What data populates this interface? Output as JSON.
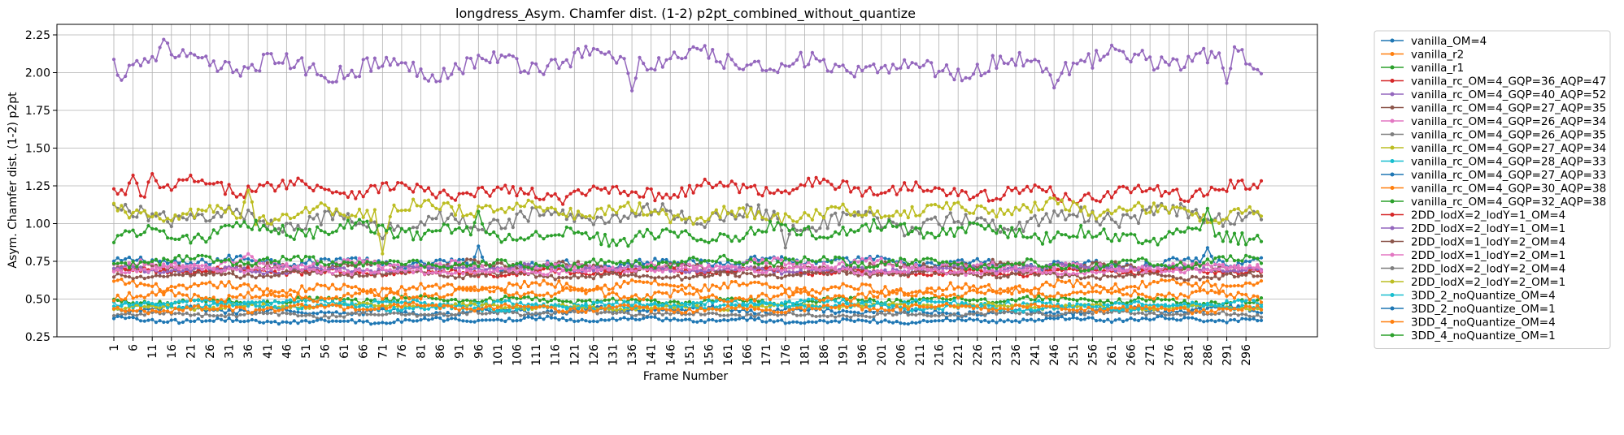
{
  "chart_data": {
    "type": "line",
    "title": "longdress_Asym. Chamfer dist. (1-2) p2pt_combined_without_quantize",
    "xlabel": "Frame Number",
    "ylabel": "Asym. Chamfer dist. (1-2) p2pt",
    "xlim": [
      1,
      300
    ],
    "ylim": [
      0.25,
      2.3
    ],
    "yticks": [
      "0.25",
      "0.50",
      "0.75",
      "1.00",
      "1.25",
      "1.50",
      "1.75",
      "2.00",
      "2.25"
    ],
    "xticks": [
      "1",
      "6",
      "11",
      "16",
      "21",
      "26",
      "31",
      "36",
      "41",
      "46",
      "51",
      "56",
      "61",
      "66",
      "71",
      "76",
      "81",
      "86",
      "91",
      "96",
      "101",
      "106",
      "111",
      "116",
      "121",
      "126",
      "131",
      "136",
      "141",
      "146",
      "151",
      "156",
      "161",
      "166",
      "171",
      "176",
      "181",
      "186",
      "191",
      "196",
      "201",
      "206",
      "211",
      "216",
      "221",
      "226",
      "231",
      "236",
      "241",
      "246",
      "251",
      "256",
      "261",
      "266",
      "271",
      "276",
      "281",
      "286",
      "291",
      "296"
    ],
    "grid": true,
    "legend_position": "outside-right",
    "series": [
      {
        "name": "vanilla_OM=4",
        "color": "#1f77b4",
        "base": 0.74,
        "amp": 0.03,
        "spikes": [
          [
            96,
            0.85
          ],
          [
            286,
            0.84
          ]
        ]
      },
      {
        "name": "vanilla_r2",
        "color": "#ff7f0e",
        "base": 0.58,
        "amp": 0.03,
        "spikes": [
          [
            286,
            0.62
          ]
        ]
      },
      {
        "name": "vanilla_r1",
        "color": "#2ca02c",
        "base": 0.49,
        "amp": 0.02,
        "spikes": []
      },
      {
        "name": "vanilla_rc_OM=4_GQP=36_AQP=47",
        "color": "#d62728",
        "base": 1.22,
        "amp": 0.05,
        "spikes": [
          [
            6,
            1.32
          ],
          [
            11,
            1.33
          ],
          [
            21,
            1.32
          ]
        ]
      },
      {
        "name": "vanilla_rc_OM=4_GQP=40_AQP=52",
        "color": "#9467bd",
        "base": 2.06,
        "amp": 0.07,
        "spikes": [
          [
            3,
            1.95
          ],
          [
            14,
            2.22
          ],
          [
            136,
            1.88
          ],
          [
            246,
            1.9
          ],
          [
            291,
            1.93
          ]
        ]
      },
      {
        "name": "vanilla_rc_OM=4_GQP=27_AQP=35",
        "color": "#8c564b",
        "base": 0.71,
        "amp": 0.03,
        "spikes": []
      },
      {
        "name": "vanilla_rc_OM=4_GQP=26_AQP=34",
        "color": "#e377c2",
        "base": 0.72,
        "amp": 0.03,
        "spikes": [
          [
            36,
            0.8
          ]
        ]
      },
      {
        "name": "vanilla_rc_OM=4_GQP=26_AQP=35",
        "color": "#7f7f7f",
        "base": 1.03,
        "amp": 0.06,
        "spikes": [
          [
            176,
            0.84
          ],
          [
            71,
            0.9
          ]
        ]
      },
      {
        "name": "vanilla_rc_OM=4_GQP=27_AQP=34",
        "color": "#bcbd22",
        "base": 1.08,
        "amp": 0.05,
        "spikes": [
          [
            36,
            1.22
          ],
          [
            71,
            0.8
          ]
        ]
      },
      {
        "name": "vanilla_rc_OM=4_GQP=28_AQP=33",
        "color": "#17becf",
        "base": 0.47,
        "amp": 0.02,
        "spikes": []
      },
      {
        "name": "vanilla_rc_OM=4_GQP=27_AQP=33",
        "color": "#1f77b4",
        "base": 0.42,
        "amp": 0.02,
        "spikes": []
      },
      {
        "name": "vanilla_rc_OM=4_GQP=30_AQP=38",
        "color": "#ff7f0e",
        "base": 0.53,
        "amp": 0.03,
        "spikes": [
          [
            71,
            0.5
          ]
        ]
      },
      {
        "name": "vanilla_rc_OM=4_GQP=32_AQP=38",
        "color": "#2ca02c",
        "base": 0.94,
        "amp": 0.05,
        "spikes": [
          [
            96,
            1.08
          ],
          [
            286,
            1.1
          ]
        ]
      },
      {
        "name": "2DD_lodX=2_lodY=1_OM=4",
        "color": "#d62728",
        "base": 0.68,
        "amp": 0.02,
        "spikes": []
      },
      {
        "name": "2DD_lodX=2_lodY=1_OM=1",
        "color": "#9467bd",
        "base": 0.7,
        "amp": 0.02,
        "spikes": []
      },
      {
        "name": "2DD_lodX=1_lodY=2_OM=4",
        "color": "#8c564b",
        "base": 0.66,
        "amp": 0.02,
        "spikes": []
      },
      {
        "name": "2DD_lodX=1_lodY=2_OM=1",
        "color": "#e377c2",
        "base": 0.69,
        "amp": 0.02,
        "spikes": []
      },
      {
        "name": "2DD_lodX=2_lodY=2_OM=4",
        "color": "#7f7f7f",
        "base": 0.4,
        "amp": 0.015,
        "spikes": []
      },
      {
        "name": "2DD_lodX=2_lodY=2_OM=1",
        "color": "#bcbd22",
        "base": 0.45,
        "amp": 0.015,
        "spikes": []
      },
      {
        "name": "3DD_2_noQuantize_OM=4",
        "color": "#17becf",
        "base": 0.45,
        "amp": 0.02,
        "spikes": []
      },
      {
        "name": "3DD_2_noQuantize_OM=1",
        "color": "#1f77b4",
        "base": 0.36,
        "amp": 0.015,
        "spikes": []
      },
      {
        "name": "3DD_4_noQuantize_OM=4",
        "color": "#ff7f0e",
        "base": 0.44,
        "amp": 0.02,
        "spikes": []
      },
      {
        "name": "3DD_4_noQuantize_OM=1",
        "color": "#2ca02c",
        "base": 0.74,
        "amp": 0.03,
        "spikes": []
      }
    ]
  }
}
